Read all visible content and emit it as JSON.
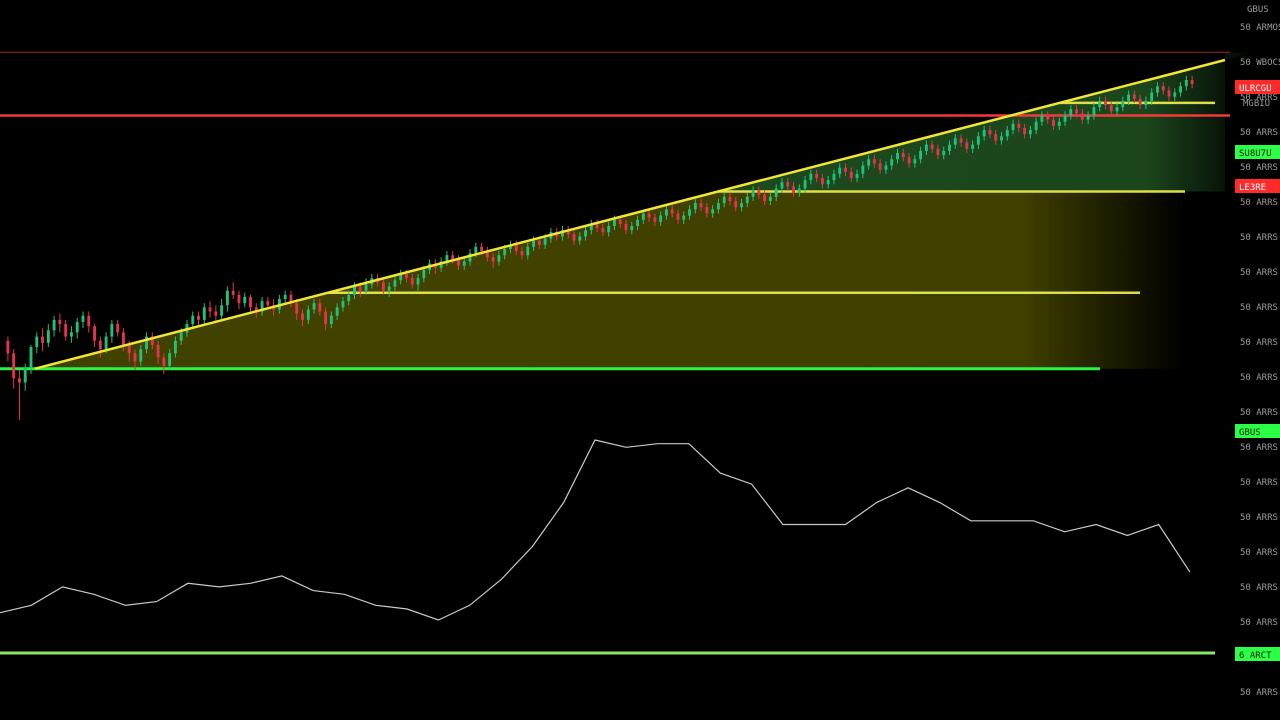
{
  "colors": {
    "background": "#000000",
    "candle_up": "#1ec27a",
    "candle_down": "#e5334d",
    "trendline": "#f2e635",
    "fib_line": "#e8e84a",
    "resistance": "#ff3b3b",
    "support": "#2bff46",
    "fill_green": "#1f4d1f",
    "fill_olive": "#4a4a00",
    "indicator": "#c9c9c9",
    "axis_text": "#9a9a9a"
  },
  "axis": {
    "header": "GBUS",
    "labels": [
      "50 ARMOS",
      "50 WBOCS",
      "50 ARRS",
      "50 ARRS",
      "50 ARRS",
      "50 ARRS",
      "50 ARRS",
      "50 ARRS",
      "50 ARRS",
      "50 ARRS",
      "50 ARRS",
      "50 ARRS",
      "50 ARRS",
      "50 ARRS",
      "50 ARRS",
      "50 ARRS",
      "50 ARRS",
      "50 ARRS",
      "50 ARRS",
      "50 ARRS"
    ]
  },
  "tags": {
    "resistance_upper": "ULRCGU",
    "marker": "MGBIU",
    "fib_upper": "SU8U7U",
    "resistance_main": "LE3RE",
    "support_main": "GBUS",
    "lower_line": "6 ARCT"
  },
  "chart_data": {
    "type": "candlestick",
    "title": "",
    "xlabel": "",
    "ylabel": "",
    "ylim": [
      0,
      100
    ],
    "scale": "price",
    "grid": false,
    "levels": {
      "resistance_upper": 90,
      "fib_upper": 78,
      "resistance_main": 75,
      "fib_mid": 57,
      "fib_lower": 33,
      "support": 15,
      "indicator_baseline": -40
    },
    "trendline": {
      "start": [
        5,
        15
      ],
      "end": [
        214,
        92
      ]
    },
    "candles": [
      [
        58,
        52,
        60,
        48
      ],
      [
        52,
        40,
        54,
        35
      ],
      [
        40,
        38,
        44,
        20
      ],
      [
        38,
        45,
        47,
        34
      ],
      [
        45,
        55,
        56,
        42
      ],
      [
        55,
        60,
        62,
        52
      ],
      [
        60,
        57,
        64,
        53
      ],
      [
        57,
        63,
        66,
        55
      ],
      [
        63,
        68,
        70,
        60
      ],
      [
        68,
        66,
        71,
        62
      ],
      [
        66,
        60,
        68,
        58
      ],
      [
        60,
        62,
        65,
        57
      ],
      [
        62,
        67,
        69,
        59
      ],
      [
        67,
        70,
        72,
        64
      ],
      [
        70,
        65,
        72,
        62
      ],
      [
        65,
        58,
        66,
        55
      ],
      [
        58,
        54,
        60,
        50
      ],
      [
        54,
        60,
        62,
        52
      ],
      [
        60,
        66,
        68,
        57
      ],
      [
        66,
        62,
        68,
        60
      ],
      [
        62,
        56,
        64,
        53
      ],
      [
        56,
        52,
        58,
        48
      ],
      [
        52,
        48,
        54,
        44
      ],
      [
        48,
        54,
        56,
        46
      ],
      [
        54,
        60,
        62,
        52
      ],
      [
        60,
        56,
        62,
        54
      ],
      [
        56,
        50,
        58,
        47
      ],
      [
        50,
        46,
        52,
        42
      ],
      [
        46,
        52,
        54,
        44
      ],
      [
        52,
        58,
        60,
        50
      ],
      [
        58,
        62,
        64,
        56
      ],
      [
        62,
        66,
        68,
        60
      ],
      [
        66,
        70,
        72,
        64
      ],
      [
        70,
        68,
        72,
        65
      ],
      [
        68,
        74,
        76,
        66
      ],
      [
        74,
        72,
        77,
        69
      ],
      [
        72,
        70,
        75,
        67
      ],
      [
        70,
        75,
        78,
        68
      ],
      [
        75,
        82,
        84,
        72
      ],
      [
        82,
        80,
        86,
        78
      ],
      [
        80,
        76,
        82,
        73
      ],
      [
        76,
        79,
        81,
        74
      ],
      [
        79,
        74,
        80,
        71
      ],
      [
        74,
        72,
        76,
        69
      ],
      [
        72,
        77,
        79,
        70
      ],
      [
        77,
        75,
        79,
        73
      ],
      [
        75,
        73,
        78,
        70
      ],
      [
        73,
        78,
        80,
        71
      ],
      [
        78,
        80,
        82,
        76
      ],
      [
        80,
        76,
        82,
        74
      ],
      [
        76,
        71,
        78,
        68
      ],
      [
        71,
        68,
        73,
        65
      ],
      [
        68,
        73,
        75,
        66
      ],
      [
        73,
        76,
        78,
        71
      ],
      [
        76,
        72,
        78,
        70
      ],
      [
        72,
        66,
        74,
        63
      ],
      [
        66,
        70,
        72,
        64
      ],
      [
        70,
        74,
        76,
        68
      ],
      [
        74,
        77,
        79,
        72
      ],
      [
        77,
        80,
        82,
        75
      ],
      [
        80,
        84,
        86,
        78
      ],
      [
        84,
        82,
        86,
        79
      ],
      [
        82,
        85,
        88,
        80
      ],
      [
        85,
        88,
        90,
        83
      ],
      [
        88,
        86,
        90,
        84
      ],
      [
        86,
        82,
        88,
        80
      ],
      [
        82,
        84,
        86,
        79
      ],
      [
        84,
        87,
        89,
        82
      ],
      [
        87,
        90,
        92,
        85
      ],
      [
        90,
        88,
        92,
        86
      ],
      [
        88,
        85,
        90,
        83
      ],
      [
        85,
        88,
        90,
        82
      ],
      [
        88,
        92,
        94,
        86
      ],
      [
        92,
        95,
        97,
        90
      ],
      [
        95,
        93,
        97,
        90
      ],
      [
        93,
        96,
        98,
        91
      ],
      [
        96,
        99,
        101,
        94
      ],
      [
        99,
        97,
        101,
        95
      ],
      [
        97,
        94,
        99,
        92
      ],
      [
        94,
        96,
        98,
        92
      ],
      [
        96,
        100,
        102,
        94
      ],
      [
        100,
        103,
        105,
        98
      ],
      [
        103,
        101,
        105,
        99
      ],
      [
        101,
        98,
        103,
        96
      ],
      [
        98,
        96,
        100,
        93
      ],
      [
        96,
        99,
        101,
        94
      ],
      [
        99,
        102,
        104,
        97
      ],
      [
        102,
        104,
        106,
        100
      ],
      [
        104,
        101,
        106,
        99
      ],
      [
        101,
        99,
        103,
        97
      ],
      [
        99,
        103,
        105,
        97
      ],
      [
        103,
        106,
        108,
        101
      ],
      [
        106,
        104,
        108,
        102
      ],
      [
        104,
        107,
        109,
        102
      ],
      [
        107,
        110,
        112,
        105
      ],
      [
        110,
        108,
        112,
        106
      ],
      [
        108,
        111,
        113,
        106
      ],
      [
        111,
        109,
        113,
        107
      ],
      [
        109,
        106,
        111,
        104
      ],
      [
        106,
        108,
        110,
        104
      ],
      [
        108,
        111,
        113,
        106
      ],
      [
        111,
        114,
        116,
        109
      ],
      [
        114,
        112,
        116,
        110
      ],
      [
        112,
        110,
        114,
        108
      ],
      [
        110,
        113,
        115,
        108
      ],
      [
        113,
        116,
        118,
        111
      ],
      [
        116,
        114,
        118,
        112
      ],
      [
        114,
        111,
        116,
        109
      ],
      [
        111,
        113,
        115,
        109
      ],
      [
        113,
        116,
        118,
        111
      ],
      [
        116,
        119,
        121,
        114
      ],
      [
        119,
        117,
        121,
        115
      ],
      [
        117,
        115,
        119,
        113
      ],
      [
        115,
        118,
        120,
        113
      ],
      [
        118,
        121,
        123,
        116
      ],
      [
        121,
        119,
        123,
        117
      ],
      [
        119,
        116,
        121,
        114
      ],
      [
        116,
        118,
        120,
        114
      ],
      [
        118,
        121,
        123,
        116
      ],
      [
        121,
        124,
        126,
        119
      ],
      [
        124,
        122,
        126,
        120
      ],
      [
        122,
        119,
        124,
        117
      ],
      [
        119,
        121,
        123,
        117
      ],
      [
        121,
        124,
        126,
        119
      ],
      [
        124,
        127,
        129,
        122
      ],
      [
        127,
        125,
        129,
        123
      ],
      [
        125,
        122,
        127,
        120
      ],
      [
        122,
        124,
        126,
        120
      ],
      [
        124,
        127,
        129,
        122
      ],
      [
        127,
        130,
        132,
        125
      ],
      [
        130,
        128,
        132,
        126
      ],
      [
        128,
        125,
        130,
        123
      ],
      [
        125,
        127,
        129,
        123
      ],
      [
        127,
        131,
        133,
        125
      ],
      [
        131,
        134,
        136,
        129
      ],
      [
        134,
        132,
        136,
        130
      ],
      [
        132,
        129,
        134,
        127
      ],
      [
        129,
        131,
        133,
        127
      ],
      [
        131,
        135,
        137,
        129
      ],
      [
        135,
        138,
        140,
        133
      ],
      [
        138,
        136,
        140,
        134
      ],
      [
        136,
        133,
        138,
        131
      ],
      [
        133,
        135,
        137,
        131
      ],
      [
        135,
        138,
        140,
        133
      ],
      [
        138,
        141,
        143,
        136
      ],
      [
        141,
        139,
        143,
        137
      ],
      [
        139,
        136,
        141,
        134
      ],
      [
        136,
        138,
        140,
        134
      ],
      [
        138,
        142,
        144,
        136
      ],
      [
        142,
        145,
        147,
        140
      ],
      [
        145,
        143,
        147,
        141
      ],
      [
        143,
        140,
        145,
        138
      ],
      [
        140,
        142,
        144,
        138
      ],
      [
        142,
        145,
        147,
        140
      ],
      [
        145,
        148,
        150,
        143
      ],
      [
        148,
        146,
        150,
        144
      ],
      [
        146,
        143,
        148,
        141
      ],
      [
        143,
        145,
        147,
        141
      ],
      [
        145,
        149,
        151,
        143
      ],
      [
        149,
        152,
        154,
        147
      ],
      [
        152,
        150,
        154,
        148
      ],
      [
        150,
        147,
        152,
        145
      ],
      [
        147,
        149,
        151,
        145
      ],
      [
        149,
        152,
        154,
        147
      ],
      [
        152,
        155,
        157,
        150
      ],
      [
        155,
        153,
        157,
        151
      ],
      [
        153,
        150,
        155,
        148
      ],
      [
        150,
        152,
        154,
        148
      ],
      [
        152,
        156,
        158,
        150
      ],
      [
        156,
        159,
        161,
        154
      ],
      [
        159,
        157,
        161,
        155
      ],
      [
        157,
        154,
        159,
        152
      ],
      [
        154,
        156,
        158,
        152
      ],
      [
        156,
        159,
        161,
        154
      ],
      [
        159,
        162,
        164,
        157
      ],
      [
        162,
        160,
        164,
        158
      ],
      [
        160,
        157,
        162,
        155
      ],
      [
        157,
        159,
        161,
        155
      ],
      [
        159,
        163,
        165,
        157
      ],
      [
        163,
        166,
        168,
        161
      ],
      [
        166,
        164,
        168,
        162
      ],
      [
        164,
        161,
        166,
        159
      ],
      [
        161,
        163,
        165,
        159
      ],
      [
        163,
        166,
        168,
        161
      ],
      [
        166,
        169,
        171,
        164
      ],
      [
        169,
        167,
        171,
        165
      ],
      [
        167,
        164,
        169,
        162
      ],
      [
        164,
        166,
        168,
        162
      ],
      [
        166,
        170,
        172,
        164
      ],
      [
        170,
        173,
        175,
        168
      ],
      [
        173,
        171,
        175,
        169
      ],
      [
        171,
        168,
        173,
        166
      ],
      [
        168,
        170,
        172,
        166
      ],
      [
        170,
        173,
        175,
        168
      ],
      [
        173,
        176,
        178,
        171
      ],
      [
        176,
        174,
        178,
        172
      ],
      [
        174,
        171,
        176,
        169
      ],
      [
        171,
        173,
        175,
        169
      ],
      [
        173,
        177,
        179,
        171
      ],
      [
        177,
        180,
        182,
        175
      ],
      [
        180,
        178,
        182,
        176
      ],
      [
        178,
        175,
        180,
        173
      ],
      [
        175,
        177,
        179,
        173
      ],
      [
        177,
        180,
        182,
        175
      ],
      [
        180,
        183,
        185,
        178
      ],
      [
        183,
        181,
        185,
        179
      ]
    ],
    "indicator": [
      [
        0,
        28
      ],
      [
        14,
        30
      ],
      [
        28,
        35
      ],
      [
        42,
        33
      ],
      [
        56,
        30
      ],
      [
        70,
        31
      ],
      [
        84,
        36
      ],
      [
        98,
        35
      ],
      [
        112,
        36
      ],
      [
        126,
        38
      ],
      [
        140,
        34
      ],
      [
        154,
        33
      ],
      [
        168,
        30
      ],
      [
        182,
        29
      ],
      [
        196,
        26
      ],
      [
        210,
        30
      ],
      [
        224,
        37
      ],
      [
        238,
        46
      ],
      [
        252,
        58
      ],
      [
        266,
        75
      ],
      [
        280,
        73
      ],
      [
        294,
        74
      ],
      [
        308,
        74
      ],
      [
        322,
        66
      ],
      [
        336,
        63
      ],
      [
        350,
        52
      ],
      [
        364,
        52
      ],
      [
        378,
        52
      ],
      [
        392,
        58
      ],
      [
        406,
        62
      ],
      [
        420,
        58
      ],
      [
        434,
        53
      ],
      [
        448,
        53
      ],
      [
        462,
        53
      ],
      [
        476,
        50
      ],
      [
        490,
        52
      ],
      [
        504,
        49
      ],
      [
        518,
        52
      ],
      [
        532,
        39
      ]
    ]
  }
}
